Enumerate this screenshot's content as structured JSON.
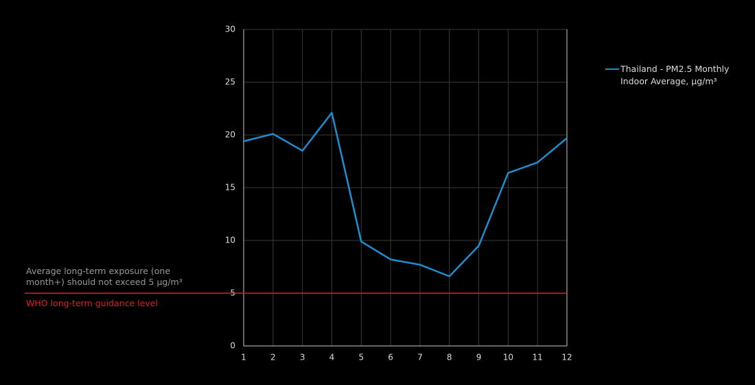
{
  "chart_data": {
    "type": "line",
    "x": [
      1,
      2,
      3,
      4,
      5,
      6,
      7,
      8,
      9,
      10,
      11,
      12
    ],
    "xlim": [
      1,
      12
    ],
    "xticks": [
      1,
      2,
      3,
      4,
      5,
      6,
      7,
      8,
      9,
      10,
      11,
      12
    ],
    "ylim": [
      0,
      30
    ],
    "yticks": [
      0,
      5,
      10,
      15,
      20,
      25,
      30
    ],
    "grid": true,
    "series": [
      {
        "name": "Thailand -  PM2.5 Monthly Indoor Average, µg/m³",
        "color": "#1f8fd3",
        "values": [
          19.4,
          20.1,
          18.5,
          22.1,
          9.9,
          8.2,
          7.7,
          6.6,
          9.5,
          16.4,
          17.4,
          19.7
        ]
      }
    ],
    "legend": "top-right",
    "reference_line": {
      "value": 5,
      "color": "#e0201a",
      "label": "WHO long-term guidance level",
      "note": "Average long-term exposure (one month+) should not exceed 5 µg/m³"
    }
  }
}
